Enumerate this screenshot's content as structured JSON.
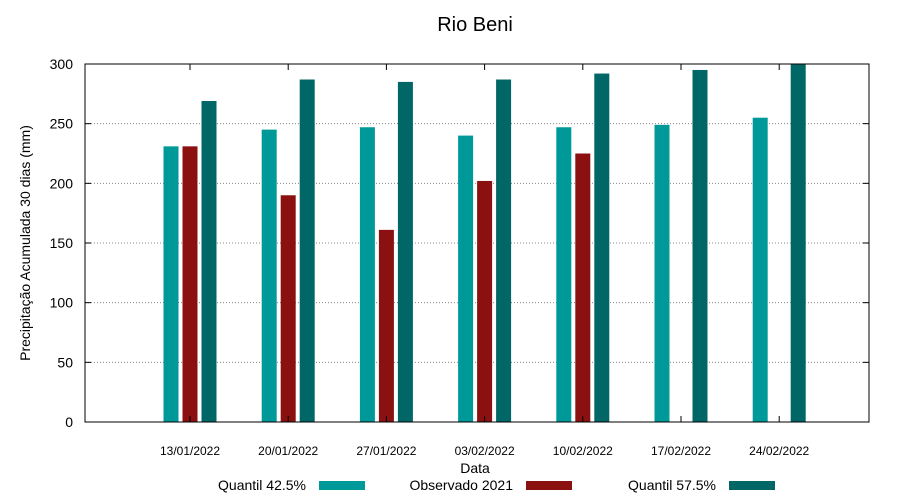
{
  "chart_data": {
    "type": "bar",
    "title": "Rio Beni",
    "xlabel": "Data",
    "ylabel": "Precipitação Acumulada 30 dias (mm)",
    "ylim": [
      0,
      300
    ],
    "yticks": [
      0,
      50,
      100,
      150,
      200,
      250,
      300
    ],
    "grid": true,
    "legend_position": "bottom",
    "categories": [
      "13/01/2022",
      "20/01/2022",
      "27/01/2022",
      "03/02/2022",
      "10/02/2022",
      "17/02/2022",
      "24/02/2022"
    ],
    "series": [
      {
        "name": "Quantil 42.5%",
        "color": "#009999",
        "values": [
          231,
          245,
          247,
          240,
          247,
          249,
          255
        ]
      },
      {
        "name": "Observado 2021",
        "color": "#8b1111",
        "values": [
          231,
          190,
          161,
          202,
          225,
          null,
          null
        ]
      },
      {
        "name": "Quantil 57.5%",
        "color": "#006666",
        "values": [
          269,
          287,
          285,
          287,
          292,
          295,
          300
        ]
      }
    ]
  }
}
